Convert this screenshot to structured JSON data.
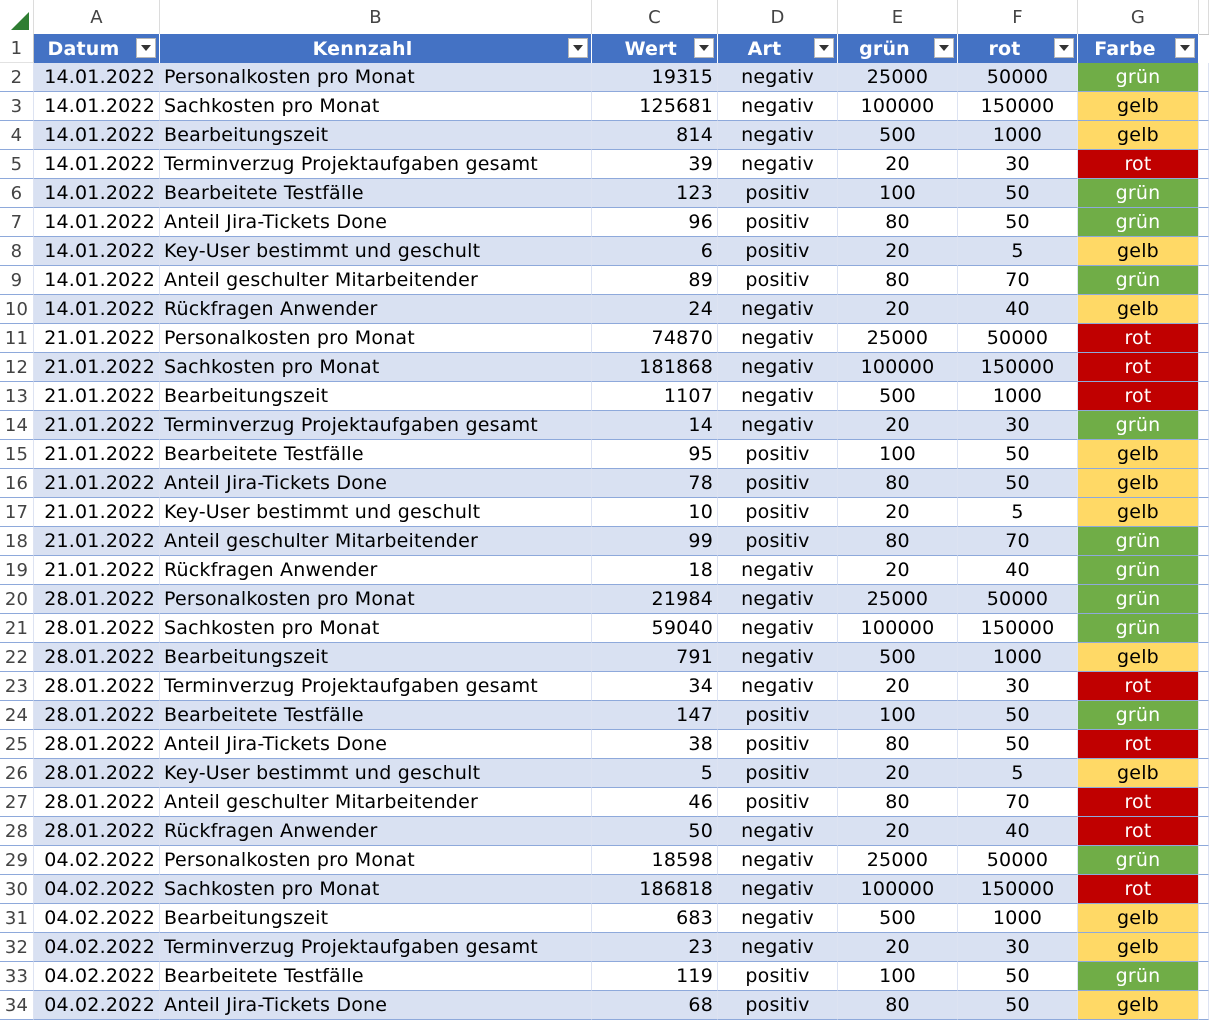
{
  "columns": [
    "A",
    "B",
    "C",
    "D",
    "E",
    "F",
    "G"
  ],
  "headers": {
    "datum": "Datum",
    "kennzahl": "Kennzahl",
    "wert": "Wert",
    "art": "Art",
    "gruen": "grün",
    "rot": "rot",
    "farbe": "Farbe"
  },
  "colors": {
    "header_bg": "#4472c4",
    "band_bg": "#d9e1f2",
    "gruen": "#70ad47",
    "gelb": "#ffd966",
    "rot": "#c00000"
  },
  "rows": [
    {
      "n": "2",
      "datum": "14.01.2022",
      "kennzahl": "Personalkosten pro Monat",
      "wert": "19315",
      "art": "negativ",
      "gruen": "25000",
      "rot": "50000",
      "farbe": "grün"
    },
    {
      "n": "3",
      "datum": "14.01.2022",
      "kennzahl": "Sachkosten pro Monat",
      "wert": "125681",
      "art": "negativ",
      "gruen": "100000",
      "rot": "150000",
      "farbe": "gelb"
    },
    {
      "n": "4",
      "datum": "14.01.2022",
      "kennzahl": "Bearbeitungszeit",
      "wert": "814",
      "art": "negativ",
      "gruen": "500",
      "rot": "1000",
      "farbe": "gelb"
    },
    {
      "n": "5",
      "datum": "14.01.2022",
      "kennzahl": "Terminverzug Projektaufgaben gesamt",
      "wert": "39",
      "art": "negativ",
      "gruen": "20",
      "rot": "30",
      "farbe": "rot"
    },
    {
      "n": "6",
      "datum": "14.01.2022",
      "kennzahl": "Bearbeitete Testfälle",
      "wert": "123",
      "art": "positiv",
      "gruen": "100",
      "rot": "50",
      "farbe": "grün"
    },
    {
      "n": "7",
      "datum": "14.01.2022",
      "kennzahl": "Anteil Jira-Tickets Done",
      "wert": "96",
      "art": "positiv",
      "gruen": "80",
      "rot": "50",
      "farbe": "grün"
    },
    {
      "n": "8",
      "datum": "14.01.2022",
      "kennzahl": "Key-User bestimmt und geschult",
      "wert": "6",
      "art": "positiv",
      "gruen": "20",
      "rot": "5",
      "farbe": "gelb"
    },
    {
      "n": "9",
      "datum": "14.01.2022",
      "kennzahl": "Anteil geschulter Mitarbeitender",
      "wert": "89",
      "art": "positiv",
      "gruen": "80",
      "rot": "70",
      "farbe": "grün"
    },
    {
      "n": "10",
      "datum": "14.01.2022",
      "kennzahl": "Rückfragen Anwender",
      "wert": "24",
      "art": "negativ",
      "gruen": "20",
      "rot": "40",
      "farbe": "gelb"
    },
    {
      "n": "11",
      "datum": "21.01.2022",
      "kennzahl": "Personalkosten pro Monat",
      "wert": "74870",
      "art": "negativ",
      "gruen": "25000",
      "rot": "50000",
      "farbe": "rot"
    },
    {
      "n": "12",
      "datum": "21.01.2022",
      "kennzahl": "Sachkosten pro Monat",
      "wert": "181868",
      "art": "negativ",
      "gruen": "100000",
      "rot": "150000",
      "farbe": "rot"
    },
    {
      "n": "13",
      "datum": "21.01.2022",
      "kennzahl": "Bearbeitungszeit",
      "wert": "1107",
      "art": "negativ",
      "gruen": "500",
      "rot": "1000",
      "farbe": "rot"
    },
    {
      "n": "14",
      "datum": "21.01.2022",
      "kennzahl": "Terminverzug Projektaufgaben gesamt",
      "wert": "14",
      "art": "negativ",
      "gruen": "20",
      "rot": "30",
      "farbe": "grün"
    },
    {
      "n": "15",
      "datum": "21.01.2022",
      "kennzahl": "Bearbeitete Testfälle",
      "wert": "95",
      "art": "positiv",
      "gruen": "100",
      "rot": "50",
      "farbe": "gelb"
    },
    {
      "n": "16",
      "datum": "21.01.2022",
      "kennzahl": "Anteil Jira-Tickets Done",
      "wert": "78",
      "art": "positiv",
      "gruen": "80",
      "rot": "50",
      "farbe": "gelb"
    },
    {
      "n": "17",
      "datum": "21.01.2022",
      "kennzahl": "Key-User bestimmt und geschult",
      "wert": "10",
      "art": "positiv",
      "gruen": "20",
      "rot": "5",
      "farbe": "gelb"
    },
    {
      "n": "18",
      "datum": "21.01.2022",
      "kennzahl": "Anteil geschulter Mitarbeitender",
      "wert": "99",
      "art": "positiv",
      "gruen": "80",
      "rot": "70",
      "farbe": "grün"
    },
    {
      "n": "19",
      "datum": "21.01.2022",
      "kennzahl": "Rückfragen Anwender",
      "wert": "18",
      "art": "negativ",
      "gruen": "20",
      "rot": "40",
      "farbe": "grün"
    },
    {
      "n": "20",
      "datum": "28.01.2022",
      "kennzahl": "Personalkosten pro Monat",
      "wert": "21984",
      "art": "negativ",
      "gruen": "25000",
      "rot": "50000",
      "farbe": "grün"
    },
    {
      "n": "21",
      "datum": "28.01.2022",
      "kennzahl": "Sachkosten pro Monat",
      "wert": "59040",
      "art": "negativ",
      "gruen": "100000",
      "rot": "150000",
      "farbe": "grün"
    },
    {
      "n": "22",
      "datum": "28.01.2022",
      "kennzahl": "Bearbeitungszeit",
      "wert": "791",
      "art": "negativ",
      "gruen": "500",
      "rot": "1000",
      "farbe": "gelb"
    },
    {
      "n": "23",
      "datum": "28.01.2022",
      "kennzahl": "Terminverzug Projektaufgaben gesamt",
      "wert": "34",
      "art": "negativ",
      "gruen": "20",
      "rot": "30",
      "farbe": "rot"
    },
    {
      "n": "24",
      "datum": "28.01.2022",
      "kennzahl": "Bearbeitete Testfälle",
      "wert": "147",
      "art": "positiv",
      "gruen": "100",
      "rot": "50",
      "farbe": "grün"
    },
    {
      "n": "25",
      "datum": "28.01.2022",
      "kennzahl": "Anteil Jira-Tickets Done",
      "wert": "38",
      "art": "positiv",
      "gruen": "80",
      "rot": "50",
      "farbe": "rot"
    },
    {
      "n": "26",
      "datum": "28.01.2022",
      "kennzahl": "Key-User bestimmt und geschult",
      "wert": "5",
      "art": "positiv",
      "gruen": "20",
      "rot": "5",
      "farbe": "gelb"
    },
    {
      "n": "27",
      "datum": "28.01.2022",
      "kennzahl": "Anteil geschulter Mitarbeitender",
      "wert": "46",
      "art": "positiv",
      "gruen": "80",
      "rot": "70",
      "farbe": "rot"
    },
    {
      "n": "28",
      "datum": "28.01.2022",
      "kennzahl": "Rückfragen Anwender",
      "wert": "50",
      "art": "negativ",
      "gruen": "20",
      "rot": "40",
      "farbe": "rot"
    },
    {
      "n": "29",
      "datum": "04.02.2022",
      "kennzahl": "Personalkosten pro Monat",
      "wert": "18598",
      "art": "negativ",
      "gruen": "25000",
      "rot": "50000",
      "farbe": "grün"
    },
    {
      "n": "30",
      "datum": "04.02.2022",
      "kennzahl": "Sachkosten pro Monat",
      "wert": "186818",
      "art": "negativ",
      "gruen": "100000",
      "rot": "150000",
      "farbe": "rot"
    },
    {
      "n": "31",
      "datum": "04.02.2022",
      "kennzahl": "Bearbeitungszeit",
      "wert": "683",
      "art": "negativ",
      "gruen": "500",
      "rot": "1000",
      "farbe": "gelb"
    },
    {
      "n": "32",
      "datum": "04.02.2022",
      "kennzahl": "Terminverzug Projektaufgaben gesamt",
      "wert": "23",
      "art": "negativ",
      "gruen": "20",
      "rot": "30",
      "farbe": "gelb"
    },
    {
      "n": "33",
      "datum": "04.02.2022",
      "kennzahl": "Bearbeitete Testfälle",
      "wert": "119",
      "art": "positiv",
      "gruen": "100",
      "rot": "50",
      "farbe": "grün"
    },
    {
      "n": "34",
      "datum": "04.02.2022",
      "kennzahl": "Anteil Jira-Tickets Done",
      "wert": "68",
      "art": "positiv",
      "gruen": "80",
      "rot": "50",
      "farbe": "gelb"
    }
  ]
}
